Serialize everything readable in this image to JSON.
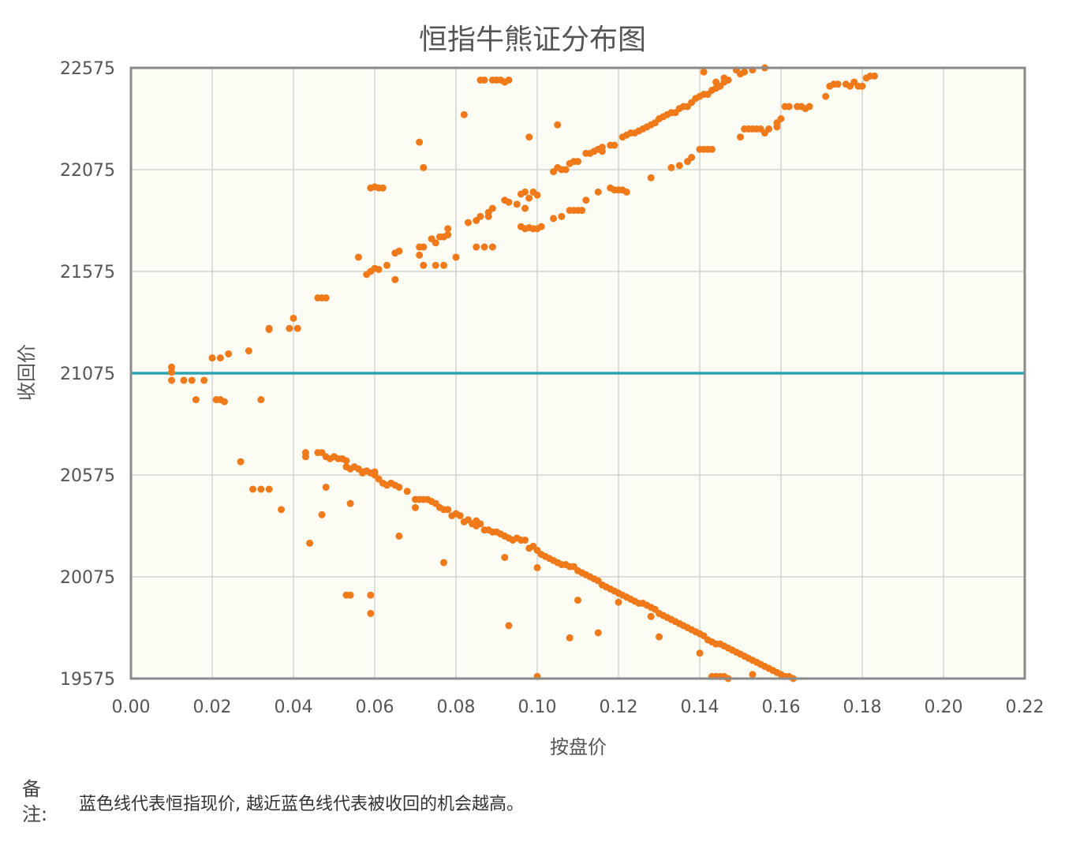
{
  "chart_data": {
    "type": "scatter",
    "title": "恒指牛熊证分布图",
    "xlabel": "按盘价",
    "ylabel": "收回价",
    "xlim": [
      0.0,
      0.22
    ],
    "ylim": [
      19575,
      22575
    ],
    "xticks": [
      "0.00",
      "0.02",
      "0.04",
      "0.06",
      "0.08",
      "0.10",
      "0.12",
      "0.14",
      "0.16",
      "0.18",
      "0.20",
      "0.22"
    ],
    "yticks": [
      "19575",
      "20075",
      "20575",
      "21075",
      "21575",
      "22075",
      "22575"
    ],
    "grid": true,
    "reference_line": {
      "y": 21075,
      "color": "#2aa5b5"
    },
    "point_color": "#f07a1a",
    "background_color": "#fdfcf4",
    "points": [
      [
        0.01,
        21105
      ],
      [
        0.01,
        21080
      ],
      [
        0.01,
        21040
      ],
      [
        0.013,
        21040
      ],
      [
        0.015,
        21040
      ],
      [
        0.018,
        21040
      ],
      [
        0.016,
        20945
      ],
      [
        0.021,
        20945
      ],
      [
        0.022,
        20945
      ],
      [
        0.023,
        20935
      ],
      [
        0.032,
        20945
      ],
      [
        0.02,
        21150
      ],
      [
        0.022,
        21150
      ],
      [
        0.024,
        21170
      ],
      [
        0.029,
        21185
      ],
      [
        0.034,
        21290
      ],
      [
        0.034,
        21295
      ],
      [
        0.039,
        21295
      ],
      [
        0.04,
        21345
      ],
      [
        0.041,
        21295
      ],
      [
        0.046,
        21445
      ],
      [
        0.047,
        21445
      ],
      [
        0.048,
        21445
      ],
      [
        0.056,
        21645
      ],
      [
        0.058,
        21560
      ],
      [
        0.059,
        21575
      ],
      [
        0.06,
        21590
      ],
      [
        0.061,
        21585
      ],
      [
        0.063,
        21605
      ],
      [
        0.065,
        21535
      ],
      [
        0.065,
        21665
      ],
      [
        0.066,
        21675
      ],
      [
        0.059,
        21985
      ],
      [
        0.06,
        21990
      ],
      [
        0.061,
        21985
      ],
      [
        0.062,
        21985
      ],
      [
        0.071,
        21695
      ],
      [
        0.071,
        21655
      ],
      [
        0.072,
        21605
      ],
      [
        0.072,
        21695
      ],
      [
        0.074,
        21735
      ],
      [
        0.075,
        21715
      ],
      [
        0.075,
        21605
      ],
      [
        0.076,
        21745
      ],
      [
        0.077,
        21605
      ],
      [
        0.077,
        21745
      ],
      [
        0.078,
        21755
      ],
      [
        0.078,
        21785
      ],
      [
        0.078,
        21755
      ],
      [
        0.08,
        21645
      ],
      [
        0.071,
        22210
      ],
      [
        0.072,
        22085
      ],
      [
        0.082,
        22345
      ],
      [
        0.083,
        21815
      ],
      [
        0.085,
        21825
      ],
      [
        0.085,
        21695
      ],
      [
        0.086,
        21845
      ],
      [
        0.087,
        21695
      ],
      [
        0.088,
        21845
      ],
      [
        0.088,
        21865
      ],
      [
        0.089,
        21885
      ],
      [
        0.089,
        21695
      ],
      [
        0.086,
        22515
      ],
      [
        0.087,
        22515
      ],
      [
        0.089,
        22515
      ],
      [
        0.09,
        22515
      ],
      [
        0.091,
        22515
      ],
      [
        0.092,
        22505
      ],
      [
        0.093,
        22515
      ],
      [
        0.092,
        21925
      ],
      [
        0.093,
        21915
      ],
      [
        0.095,
        21905
      ],
      [
        0.096,
        21955
      ],
      [
        0.097,
        21885
      ],
      [
        0.097,
        21965
      ],
      [
        0.098,
        21935
      ],
      [
        0.099,
        21965
      ],
      [
        0.096,
        21795
      ],
      [
        0.097,
        21785
      ],
      [
        0.098,
        21790
      ],
      [
        0.099,
        21785
      ],
      [
        0.1,
        21950
      ],
      [
        0.098,
        22235
      ],
      [
        0.1,
        21785
      ],
      [
        0.101,
        21795
      ],
      [
        0.104,
        22065
      ],
      [
        0.105,
        22085
      ],
      [
        0.105,
        22295
      ],
      [
        0.106,
        22075
      ],
      [
        0.107,
        22075
      ],
      [
        0.108,
        22105
      ],
      [
        0.109,
        22115
      ],
      [
        0.11,
        22115
      ],
      [
        0.104,
        21835
      ],
      [
        0.106,
        21845
      ],
      [
        0.108,
        21875
      ],
      [
        0.109,
        21875
      ],
      [
        0.11,
        21875
      ],
      [
        0.111,
        21875
      ],
      [
        0.112,
        22155
      ],
      [
        0.113,
        22155
      ],
      [
        0.114,
        22165
      ],
      [
        0.115,
        22175
      ],
      [
        0.116,
        22165
      ],
      [
        0.116,
        22185
      ],
      [
        0.118,
        22195
      ],
      [
        0.119,
        22195
      ],
      [
        0.112,
        21925
      ],
      [
        0.115,
        21965
      ],
      [
        0.118,
        21985
      ],
      [
        0.119,
        21975
      ],
      [
        0.12,
        21975
      ],
      [
        0.121,
        21975
      ],
      [
        0.122,
        21965
      ],
      [
        0.121,
        22235
      ],
      [
        0.122,
        22245
      ],
      [
        0.123,
        22255
      ],
      [
        0.124,
        22255
      ],
      [
        0.125,
        22265
      ],
      [
        0.126,
        22275
      ],
      [
        0.127,
        22285
      ],
      [
        0.128,
        22295
      ],
      [
        0.129,
        22305
      ],
      [
        0.13,
        22325
      ],
      [
        0.131,
        22335
      ],
      [
        0.132,
        22345
      ],
      [
        0.133,
        22355
      ],
      [
        0.134,
        22355
      ],
      [
        0.135,
        22375
      ],
      [
        0.136,
        22385
      ],
      [
        0.137,
        22385
      ],
      [
        0.138,
        22405
      ],
      [
        0.139,
        22425
      ],
      [
        0.14,
        22435
      ],
      [
        0.141,
        22445
      ],
      [
        0.142,
        22445
      ],
      [
        0.143,
        22465
      ],
      [
        0.144,
        22475
      ],
      [
        0.145,
        22485
      ],
      [
        0.146,
        22505
      ],
      [
        0.147,
        22515
      ],
      [
        0.141,
        22555
      ],
      [
        0.144,
        22505
      ],
      [
        0.146,
        22525
      ],
      [
        0.128,
        22035
      ],
      [
        0.133,
        22085
      ],
      [
        0.135,
        22095
      ],
      [
        0.137,
        22115
      ],
      [
        0.138,
        22135
      ],
      [
        0.14,
        22175
      ],
      [
        0.141,
        22175
      ],
      [
        0.142,
        22175
      ],
      [
        0.143,
        22175
      ],
      [
        0.15,
        22235
      ],
      [
        0.151,
        22275
      ],
      [
        0.152,
        22275
      ],
      [
        0.153,
        22275
      ],
      [
        0.154,
        22275
      ],
      [
        0.155,
        22275
      ],
      [
        0.156,
        22255
      ],
      [
        0.157,
        22275
      ],
      [
        0.159,
        22285
      ],
      [
        0.159,
        22305
      ],
      [
        0.16,
        22325
      ],
      [
        0.161,
        22385
      ],
      [
        0.162,
        22385
      ],
      [
        0.164,
        22385
      ],
      [
        0.165,
        22385
      ],
      [
        0.166,
        22375
      ],
      [
        0.167,
        22385
      ],
      [
        0.149,
        22565
      ],
      [
        0.15,
        22545
      ],
      [
        0.151,
        22555
      ],
      [
        0.153,
        22565
      ],
      [
        0.156,
        22575
      ],
      [
        0.171,
        22435
      ],
      [
        0.172,
        22485
      ],
      [
        0.173,
        22495
      ],
      [
        0.174,
        22495
      ],
      [
        0.176,
        22495
      ],
      [
        0.177,
        22485
      ],
      [
        0.178,
        22505
      ],
      [
        0.179,
        22485
      ],
      [
        0.18,
        22485
      ],
      [
        0.181,
        22525
      ],
      [
        0.182,
        22535
      ],
      [
        0.183,
        22535
      ],
      [
        0.043,
        20685
      ],
      [
        0.043,
        20665
      ],
      [
        0.046,
        20685
      ],
      [
        0.047,
        20685
      ],
      [
        0.048,
        20665
      ],
      [
        0.049,
        20655
      ],
      [
        0.05,
        20665
      ],
      [
        0.051,
        20655
      ],
      [
        0.052,
        20655
      ],
      [
        0.053,
        20645
      ],
      [
        0.053,
        20615
      ],
      [
        0.054,
        20605
      ],
      [
        0.055,
        20615
      ],
      [
        0.056,
        20605
      ],
      [
        0.057,
        20585
      ],
      [
        0.058,
        20595
      ],
      [
        0.059,
        20585
      ],
      [
        0.06,
        20575
      ],
      [
        0.061,
        20555
      ],
      [
        0.062,
        20535
      ],
      [
        0.063,
        20525
      ],
      [
        0.064,
        20535
      ],
      [
        0.065,
        20525
      ],
      [
        0.066,
        20515
      ],
      [
        0.068,
        20495
      ],
      [
        0.07,
        20455
      ],
      [
        0.071,
        20455
      ],
      [
        0.072,
        20455
      ],
      [
        0.073,
        20455
      ],
      [
        0.074,
        20445
      ],
      [
        0.075,
        20435
      ],
      [
        0.076,
        20415
      ],
      [
        0.077,
        20405
      ],
      [
        0.078,
        20405
      ],
      [
        0.079,
        20375
      ],
      [
        0.08,
        20385
      ],
      [
        0.081,
        20375
      ],
      [
        0.082,
        20345
      ],
      [
        0.083,
        20355
      ],
      [
        0.084,
        20335
      ],
      [
        0.085,
        20325
      ],
      [
        0.086,
        20335
      ],
      [
        0.087,
        20305
      ],
      [
        0.088,
        20305
      ],
      [
        0.089,
        20295
      ],
      [
        0.09,
        20295
      ],
      [
        0.091,
        20285
      ],
      [
        0.092,
        20275
      ],
      [
        0.093,
        20265
      ],
      [
        0.094,
        20255
      ],
      [
        0.095,
        20265
      ],
      [
        0.096,
        20255
      ],
      [
        0.097,
        20255
      ],
      [
        0.098,
        20215
      ],
      [
        0.099,
        20225
      ],
      [
        0.1,
        20205
      ],
      [
        0.101,
        20185
      ],
      [
        0.102,
        20175
      ],
      [
        0.103,
        20165
      ],
      [
        0.104,
        20155
      ],
      [
        0.105,
        20145
      ],
      [
        0.106,
        20135
      ],
      [
        0.107,
        20135
      ],
      [
        0.108,
        20125
      ],
      [
        0.109,
        20125
      ],
      [
        0.11,
        20105
      ],
      [
        0.111,
        20095
      ],
      [
        0.112,
        20085
      ],
      [
        0.113,
        20075
      ],
      [
        0.114,
        20065
      ],
      [
        0.115,
        20055
      ],
      [
        0.116,
        20035
      ],
      [
        0.117,
        20025
      ],
      [
        0.118,
        20015
      ],
      [
        0.119,
        20005
      ],
      [
        0.12,
        19995
      ],
      [
        0.121,
        19985
      ],
      [
        0.122,
        19975
      ],
      [
        0.123,
        19965
      ],
      [
        0.124,
        19955
      ],
      [
        0.125,
        19945
      ],
      [
        0.126,
        19945
      ],
      [
        0.127,
        19935
      ],
      [
        0.128,
        19925
      ],
      [
        0.129,
        19915
      ],
      [
        0.13,
        19895
      ],
      [
        0.131,
        19885
      ],
      [
        0.132,
        19875
      ],
      [
        0.133,
        19865
      ],
      [
        0.134,
        19855
      ],
      [
        0.135,
        19845
      ],
      [
        0.136,
        19835
      ],
      [
        0.137,
        19825
      ],
      [
        0.138,
        19815
      ],
      [
        0.139,
        19805
      ],
      [
        0.14,
        19795
      ],
      [
        0.141,
        19785
      ],
      [
        0.142,
        19765
      ],
      [
        0.143,
        19755
      ],
      [
        0.144,
        19745
      ],
      [
        0.145,
        19745
      ],
      [
        0.146,
        19735
      ],
      [
        0.147,
        19725
      ],
      [
        0.148,
        19715
      ],
      [
        0.149,
        19705
      ],
      [
        0.15,
        19695
      ],
      [
        0.151,
        19685
      ],
      [
        0.152,
        19675
      ],
      [
        0.153,
        19665
      ],
      [
        0.154,
        19655
      ],
      [
        0.155,
        19645
      ],
      [
        0.156,
        19635
      ],
      [
        0.157,
        19625
      ],
      [
        0.158,
        19615
      ],
      [
        0.159,
        19605
      ],
      [
        0.16,
        19595
      ],
      [
        0.161,
        19585
      ],
      [
        0.162,
        19585
      ],
      [
        0.163,
        19575
      ],
      [
        0.044,
        20240
      ],
      [
        0.047,
        20380
      ],
      [
        0.048,
        20515
      ],
      [
        0.054,
        20435
      ],
      [
        0.057,
        20590
      ],
      [
        0.06,
        20590
      ],
      [
        0.066,
        20275
      ],
      [
        0.07,
        20415
      ],
      [
        0.077,
        20145
      ],
      [
        0.085,
        20350
      ],
      [
        0.093,
        19835
      ],
      [
        0.1,
        19585
      ],
      [
        0.108,
        19775
      ],
      [
        0.115,
        19800
      ],
      [
        0.128,
        19880
      ],
      [
        0.053,
        19985
      ],
      [
        0.054,
        19985
      ],
      [
        0.059,
        19985
      ],
      [
        0.059,
        19895
      ],
      [
        0.027,
        20640
      ],
      [
        0.03,
        20505
      ],
      [
        0.032,
        20505
      ],
      [
        0.034,
        20505
      ],
      [
        0.037,
        20405
      ],
      [
        0.092,
        20170
      ],
      [
        0.1,
        20120
      ],
      [
        0.11,
        19960
      ],
      [
        0.12,
        19950
      ],
      [
        0.13,
        19780
      ],
      [
        0.14,
        19700
      ],
      [
        0.143,
        19585
      ],
      [
        0.144,
        19585
      ],
      [
        0.145,
        19585
      ],
      [
        0.146,
        19585
      ],
      [
        0.147,
        19575
      ],
      [
        0.153,
        19595
      ]
    ]
  },
  "note": {
    "label": "备注:",
    "text": "蓝色线代表恒指现价, 越近蓝色线代表被收回的机会越高。"
  }
}
